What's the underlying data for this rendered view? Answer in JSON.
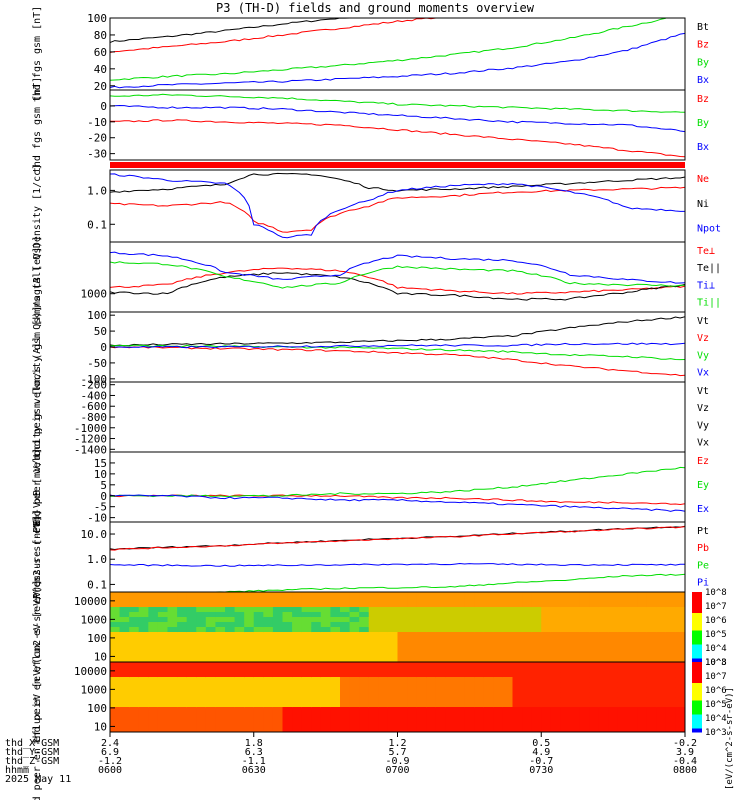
{
  "title": "P3 (TH-D) fields and ground moments overview",
  "chart_data": [
    {
      "type": "line",
      "ylabel": "thd fgs gsm [nT]",
      "yticks": [
        "20",
        "40",
        "60",
        "80",
        "100"
      ],
      "ylim": [
        15,
        100
      ],
      "legend": [
        "Bt",
        "Bz",
        "By",
        "Bx"
      ],
      "series": [
        {
          "name": "Bt",
          "color": "#000000",
          "x": [
            0,
            0.1,
            0.2,
            0.3,
            0.4,
            0.45
          ],
          "values": [
            72,
            78,
            85,
            93,
            100,
            105
          ]
        },
        {
          "name": "Bz",
          "color": "#ff0000",
          "x": [
            0,
            0.1,
            0.2,
            0.3,
            0.4,
            0.5,
            0.6
          ],
          "values": [
            60,
            66,
            72,
            80,
            88,
            96,
            103
          ]
        },
        {
          "name": "By",
          "color": "#00dd00",
          "x": [
            0,
            0.1,
            0.2,
            0.3,
            0.4,
            0.5,
            0.6,
            0.7,
            0.8,
            0.9,
            0.97
          ],
          "values": [
            27,
            31,
            34,
            39,
            44,
            50,
            57,
            65,
            76,
            90,
            100
          ]
        },
        {
          "name": "Bx",
          "color": "#0000ff",
          "x": [
            0,
            0.1,
            0.2,
            0.3,
            0.4,
            0.5,
            0.6,
            0.7,
            0.8,
            0.9,
            1.0
          ],
          "values": [
            18,
            21,
            23,
            25,
            28,
            31,
            35,
            41,
            49,
            62,
            82
          ]
        }
      ]
    },
    {
      "type": "line",
      "ylabel": "thd fgs gsm [nT]",
      "yticks": [
        "-30",
        "-20",
        "-10",
        "0"
      ],
      "ylim": [
        -34,
        10
      ],
      "legend": [
        "Bz",
        "By",
        "Bx"
      ],
      "series": [
        {
          "name": "Bz",
          "color": "#ff0000",
          "x": [
            0,
            0.1,
            0.2,
            0.3,
            0.4,
            0.5,
            0.6,
            0.7,
            0.8,
            0.9,
            1.0
          ],
          "values": [
            -10,
            -9,
            -10,
            -11,
            -12,
            -15,
            -18,
            -21,
            -24,
            -28,
            -32
          ]
        },
        {
          "name": "By",
          "color": "#00dd00",
          "x": [
            0,
            0.1,
            0.2,
            0.3,
            0.4,
            0.5,
            0.6,
            0.7,
            0.8,
            0.9,
            1.0
          ],
          "values": [
            6,
            7,
            6,
            5,
            3,
            1,
            0,
            -1,
            -2,
            -3,
            -4
          ]
        },
        {
          "name": "Bx",
          "color": "#0000ff",
          "x": [
            0,
            0.1,
            0.2,
            0.3,
            0.4,
            0.5,
            0.6,
            0.7,
            0.8,
            0.9,
            1.0
          ],
          "values": [
            0,
            -1,
            -1,
            -2,
            -4,
            -6,
            -8,
            -10,
            -11,
            -12,
            -16
          ]
        }
      ]
    },
    {
      "type": "line",
      "ylabel": "Density [1/cc]",
      "yticks": [
        "0.1",
        "1.0"
      ],
      "ylim": [
        0.03,
        4
      ],
      "yscale": "log",
      "legend": [
        "Ne",
        "Ni",
        "Npot"
      ],
      "series": [
        {
          "name": "Ne",
          "color": "#ff0000",
          "x": [
            0,
            0.1,
            0.2,
            0.25,
            0.3,
            0.35,
            0.45,
            0.5,
            0.6,
            0.7,
            0.8,
            0.9,
            1.0
          ],
          "values": [
            0.4,
            0.35,
            0.45,
            0.12,
            0.06,
            0.07,
            0.35,
            0.6,
            0.7,
            0.9,
            1.0,
            1.1,
            1.2
          ]
        },
        {
          "name": "Ni",
          "color": "#000000",
          "x": [
            0,
            0.1,
            0.2,
            0.25,
            0.3,
            0.35,
            0.45,
            0.5,
            0.6,
            0.7,
            0.8,
            0.9,
            1.0
          ],
          "values": [
            0.9,
            1.1,
            1.5,
            3.0,
            3.0,
            3.0,
            1.2,
            1.0,
            1.1,
            1.3,
            1.6,
            2.0,
            2.4
          ]
        },
        {
          "name": "Npot",
          "color": "#0000ff",
          "x": [
            0,
            0.1,
            0.2,
            0.25,
            0.3,
            0.35,
            0.45,
            0.5,
            0.6,
            0.7,
            0.8,
            0.9,
            1.0
          ],
          "values": [
            3.0,
            2.0,
            1.6,
            0.1,
            0.04,
            0.05,
            0.5,
            1.0,
            1.4,
            1.6,
            0.9,
            0.3,
            0.25
          ]
        }
      ]
    },
    {
      "type": "line",
      "ylabel": "magt3 [eV]",
      "yticks": [
        "1000"
      ],
      "ylim": [
        300,
        30000
      ],
      "yscale": "log",
      "legend": [
        "Te⊥",
        "Te||",
        "Ti⊥",
        "Ti||"
      ],
      "series": [
        {
          "name": "Te⊥",
          "color": "#ff0000",
          "x": [
            0,
            0.1,
            0.2,
            0.3,
            0.4,
            0.5,
            0.6,
            0.7,
            0.8,
            0.9,
            1.0
          ],
          "values": [
            1500,
            1800,
            4000,
            5500,
            4500,
            1500,
            1200,
            1000,
            1100,
            1300,
            1600
          ]
        },
        {
          "name": "Te||",
          "color": "#000000",
          "x": [
            0,
            0.1,
            0.2,
            0.3,
            0.4,
            0.5,
            0.6,
            0.7,
            0.8,
            0.9,
            1.0
          ],
          "values": [
            1100,
            1000,
            3000,
            4000,
            3000,
            1000,
            900,
            700,
            700,
            1100,
            1800
          ]
        },
        {
          "name": "Ti⊥",
          "color": "#0000ff",
          "x": [
            0,
            0.1,
            0.2,
            0.3,
            0.4,
            0.5,
            0.6,
            0.7,
            0.8,
            0.9,
            1.0
          ],
          "values": [
            15000,
            12000,
            4000,
            2500,
            3500,
            12000,
            10000,
            9000,
            3500,
            2500,
            2000
          ]
        },
        {
          "name": "Ti||",
          "color": "#00dd00",
          "x": [
            0,
            0.1,
            0.2,
            0.3,
            0.4,
            0.5,
            0.6,
            0.7,
            0.8,
            0.9,
            1.0
          ],
          "values": [
            8000,
            7000,
            3000,
            1500,
            2000,
            6000,
            5000,
            4500,
            2000,
            1800,
            1700
          ]
        }
      ]
    },
    {
      "type": "line",
      "ylabel": "thd peir velocity gsm [km/s (All Qs)]",
      "yticks": [
        "-100",
        "-50",
        "0",
        "50",
        "100"
      ],
      "ylim": [
        -110,
        110
      ],
      "legend": [
        "Vt",
        "Vz",
        "Vy",
        "Vx"
      ],
      "series": [
        {
          "name": "Vt",
          "color": "#000000",
          "x": [
            0,
            0.1,
            0.2,
            0.3,
            0.4,
            0.5,
            0.6,
            0.7,
            0.8,
            0.9,
            1.0
          ],
          "values": [
            5,
            8,
            10,
            12,
            15,
            20,
            25,
            35,
            60,
            80,
            95
          ]
        },
        {
          "name": "Vz",
          "color": "#ff0000",
          "x": [
            0,
            0.1,
            0.2,
            0.3,
            0.4,
            0.5,
            0.6,
            0.7,
            0.8,
            0.9,
            1.0
          ],
          "values": [
            0,
            -2,
            -5,
            -8,
            -12,
            -18,
            -25,
            -40,
            -60,
            -75,
            -90
          ]
        },
        {
          "name": "Vy",
          "color": "#00dd00",
          "x": [
            0,
            0.1,
            0.2,
            0.3,
            0.4,
            0.5,
            0.6,
            0.7,
            0.8,
            0.9,
            1.0
          ],
          "values": [
            5,
            3,
            2,
            0,
            -2,
            -5,
            -10,
            -15,
            -25,
            -30,
            -40
          ]
        },
        {
          "name": "Vx",
          "color": "#0000ff",
          "x": [
            0,
            0.1,
            0.2,
            0.3,
            0.4,
            0.5,
            0.6,
            0.7,
            0.8,
            0.9,
            1.0
          ],
          "values": [
            0,
            0,
            0,
            2,
            3,
            5,
            5,
            5,
            10,
            10,
            10
          ]
        }
      ]
    },
    {
      "type": "line",
      "ylabel": "thd peer velocity gsm [km/s (All Qs)]",
      "yticks": [
        "-1400",
        "-1200",
        "-1000",
        "-800",
        "-600",
        "-400",
        "-200"
      ],
      "ylim": [
        -1450,
        -150
      ],
      "legend": [
        "Vt",
        "Vz",
        "Vy",
        "Vx"
      ],
      "series": []
    },
    {
      "type": "line",
      "ylabel": "E=-VxB [mV/m]",
      "yticks": [
        "-10",
        "-5",
        "0",
        "5",
        "10",
        "15"
      ],
      "ylim": [
        -12,
        20
      ],
      "legend": [
        "Ez",
        "Ey",
        "Ex"
      ],
      "series": [
        {
          "name": "Ez",
          "color": "#ff0000",
          "x": [
            0,
            0.1,
            0.2,
            0.3,
            0.4,
            0.5,
            0.6,
            0.7,
            0.8,
            0.9,
            1.0
          ],
          "values": [
            0,
            0,
            0,
            0,
            0,
            -1,
            -1,
            -2,
            -3,
            -3,
            -4
          ]
        },
        {
          "name": "Ey",
          "color": "#00dd00",
          "x": [
            0,
            0.1,
            0.2,
            0.3,
            0.4,
            0.5,
            0.6,
            0.7,
            0.8,
            0.9,
            1.0
          ],
          "values": [
            0,
            0,
            0,
            0,
            1,
            1,
            2,
            4,
            7,
            10,
            13
          ]
        },
        {
          "name": "Ex",
          "color": "#0000ff",
          "x": [
            0,
            0.1,
            0.2,
            0.3,
            0.4,
            0.5,
            0.6,
            0.7,
            0.8,
            0.9,
            1.0
          ],
          "values": [
            0,
            0,
            -1,
            -1,
            -2,
            -2,
            -3,
            -4,
            -5,
            -6,
            -7
          ]
        }
      ]
    },
    {
      "type": "line",
      "ylabel": "Pressure [nPa]",
      "yticks": [
        "0.1",
        "1.0",
        "10.0"
      ],
      "ylim": [
        0.05,
        30
      ],
      "yscale": "log",
      "legend": [
        "Pt",
        "Pb",
        "Pe",
        "Pi"
      ],
      "series": [
        {
          "name": "Pt",
          "color": "#000000",
          "x": [
            0,
            0.2,
            0.4,
            0.6,
            0.8,
            1.0
          ],
          "values": [
            2.5,
            3.5,
            5.5,
            8,
            13,
            20
          ]
        },
        {
          "name": "Pb",
          "color": "#ff0000",
          "x": [
            0,
            0.2,
            0.4,
            0.6,
            0.8,
            1.0
          ],
          "values": [
            2.4,
            3.4,
            5.3,
            7.8,
            12.5,
            19
          ]
        },
        {
          "name": "Pe",
          "color": "#00dd00",
          "x": [
            0,
            0.2,
            0.4,
            0.6,
            0.8,
            0.9,
            1.0
          ],
          "values": [
            0.03,
            0.05,
            0.07,
            0.08,
            0.15,
            0.22,
            0.25
          ]
        },
        {
          "name": "Pi",
          "color": "#0000ff",
          "x": [
            0,
            0.2,
            0.4,
            0.6,
            0.8,
            1.0
          ],
          "values": [
            0.6,
            0.55,
            0.6,
            0.65,
            0.6,
            0.6
          ]
        }
      ]
    },
    {
      "type": "heatmap",
      "ylabel": "thd peir en eflux eV [eV/(cm2-s-sr-eV)]",
      "yticks": [
        "10",
        "100",
        "1000",
        "10000"
      ],
      "colorbar_ticks": [
        "10^3",
        "10^4",
        "10^5",
        "10^6",
        "10^7",
        "10^8"
      ],
      "colorbar_label": "[eV/(cm^2-s-sr-eV)]"
    },
    {
      "type": "heatmap",
      "ylabel": "thd peer en eflux eV [eV/(cm2-s-sr-eV)]",
      "yticks": [
        "10",
        "100",
        "1000",
        "10000"
      ],
      "colorbar_ticks": [
        "10^3",
        "10^4",
        "10^5",
        "10^6",
        "10^7",
        "10^8"
      ],
      "colorbar_label": "[eV/(cm^2-s-sr-eV)]"
    }
  ],
  "x_axis": {
    "rows": [
      {
        "label": "thd_X-GSM",
        "values": [
          "2.4",
          "1.8",
          "1.2",
          "0.5",
          "-0.2"
        ]
      },
      {
        "label": "thd_Y-GSM",
        "values": [
          "6.9",
          "6.3",
          "5.7",
          "4.9",
          "3.9"
        ]
      },
      {
        "label": "thd_Z-GSM",
        "values": [
          "-1.2",
          "-1.1",
          "-0.9",
          "-0.7",
          "-0.4"
        ]
      },
      {
        "label": "hhmm",
        "values": [
          "0600",
          "0630",
          "0700",
          "0730",
          "0800"
        ]
      }
    ],
    "date": "2025 May 11"
  },
  "colors": {
    "ne": "#ff0000",
    "bg": "#ffffff"
  }
}
